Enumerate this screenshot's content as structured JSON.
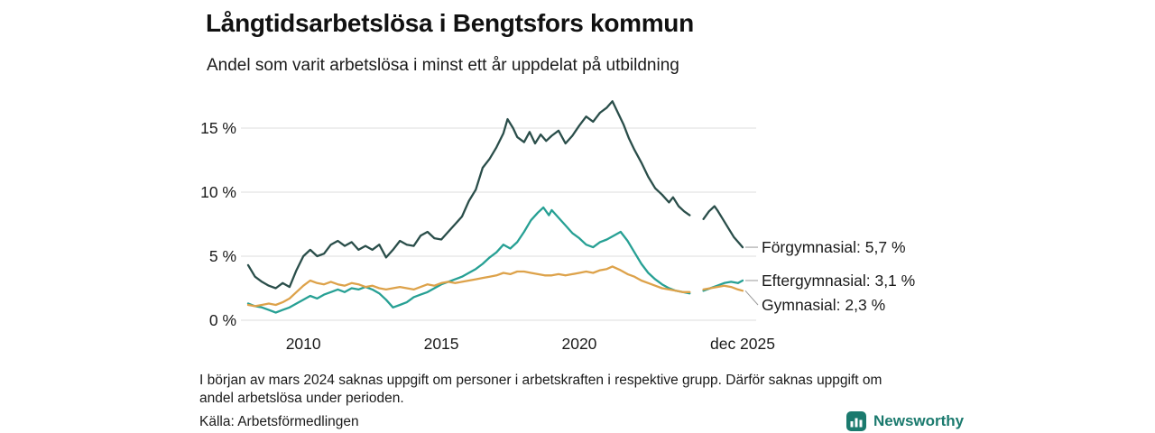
{
  "header": {
    "title": "Långtidsarbetslösa i Bengtsfors kommun",
    "subtitle": "Andel som varit arbetslösa i minst ett år uppdelat på utbildning"
  },
  "footer": {
    "note": "I början av mars 2024 saknas uppgift om personer i arbetskraften i respektive grupp. Därför saknas uppgift om\nandel arbetslösa under perioden.",
    "source": "Källa: Arbetsförmedlingen",
    "logo_text": "Newsworthy",
    "logo_color": "#1b7a6e"
  },
  "chart_data": {
    "type": "line",
    "title": "Långtidsarbetslösa i Bengtsfors kommun",
    "subtitle": "Andel som varit arbetslösa i minst ett år uppdelat på utbildning",
    "xlim": [
      2008,
      2025.92
    ],
    "ylim": [
      0,
      17.5
    ],
    "yticks": [
      0,
      5,
      10,
      15
    ],
    "ytick_labels": [
      "0 %",
      "5 %",
      "10 %",
      "15 %"
    ],
    "xticks": [
      2010,
      2015,
      2020,
      2025.92
    ],
    "xtick_labels": [
      "2010",
      "2015",
      "2020",
      "dec 2025"
    ],
    "grid": "horizontal",
    "gap_note": "data gap around March 2024",
    "series": [
      {
        "name": "Förgymnasial",
        "color": "#2a4e4a",
        "end_value": 5.7,
        "end_label": "Förgymnasial: 5,7 %",
        "points": [
          [
            2008.0,
            4.3
          ],
          [
            2008.25,
            3.4
          ],
          [
            2008.5,
            3.0
          ],
          [
            2008.75,
            2.7
          ],
          [
            2009.0,
            2.5
          ],
          [
            2009.25,
            2.9
          ],
          [
            2009.5,
            2.6
          ],
          [
            2009.75,
            3.9
          ],
          [
            2010.0,
            5.0
          ],
          [
            2010.25,
            5.5
          ],
          [
            2010.5,
            5.0
          ],
          [
            2010.75,
            5.2
          ],
          [
            2011.0,
            5.9
          ],
          [
            2011.25,
            6.2
          ],
          [
            2011.5,
            5.8
          ],
          [
            2011.75,
            6.1
          ],
          [
            2012.0,
            5.5
          ],
          [
            2012.25,
            5.8
          ],
          [
            2012.5,
            5.5
          ],
          [
            2012.75,
            5.9
          ],
          [
            2013.0,
            4.9
          ],
          [
            2013.25,
            5.5
          ],
          [
            2013.5,
            6.2
          ],
          [
            2013.75,
            5.9
          ],
          [
            2014.0,
            5.8
          ],
          [
            2014.25,
            6.6
          ],
          [
            2014.5,
            6.9
          ],
          [
            2014.75,
            6.4
          ],
          [
            2015.0,
            6.3
          ],
          [
            2015.25,
            6.9
          ],
          [
            2015.5,
            7.5
          ],
          [
            2015.75,
            8.1
          ],
          [
            2016.0,
            9.3
          ],
          [
            2016.25,
            10.2
          ],
          [
            2016.5,
            11.9
          ],
          [
            2016.75,
            12.6
          ],
          [
            2017.0,
            13.5
          ],
          [
            2017.25,
            14.6
          ],
          [
            2017.4,
            15.7
          ],
          [
            2017.6,
            15.0
          ],
          [
            2017.75,
            14.3
          ],
          [
            2018.0,
            13.9
          ],
          [
            2018.2,
            14.7
          ],
          [
            2018.4,
            13.8
          ],
          [
            2018.6,
            14.5
          ],
          [
            2018.8,
            14.0
          ],
          [
            2019.0,
            14.4
          ],
          [
            2019.25,
            14.8
          ],
          [
            2019.5,
            13.8
          ],
          [
            2019.75,
            14.4
          ],
          [
            2020.0,
            15.2
          ],
          [
            2020.25,
            15.9
          ],
          [
            2020.5,
            15.5
          ],
          [
            2020.75,
            16.2
          ],
          [
            2021.0,
            16.6
          ],
          [
            2021.2,
            17.1
          ],
          [
            2021.4,
            16.2
          ],
          [
            2021.6,
            15.3
          ],
          [
            2021.8,
            14.2
          ],
          [
            2022.0,
            13.3
          ],
          [
            2022.25,
            12.3
          ],
          [
            2022.5,
            11.2
          ],
          [
            2022.75,
            10.3
          ],
          [
            2023.0,
            9.8
          ],
          [
            2023.25,
            9.2
          ],
          [
            2023.4,
            9.6
          ],
          [
            2023.6,
            8.9
          ],
          [
            2023.8,
            8.5
          ],
          [
            2024.0,
            8.2
          ],
          [
            2024.17,
            null
          ],
          [
            2024.5,
            7.9
          ],
          [
            2024.7,
            8.5
          ],
          [
            2024.9,
            8.9
          ],
          [
            2025.0,
            8.6
          ],
          [
            2025.2,
            7.9
          ],
          [
            2025.4,
            7.2
          ],
          [
            2025.6,
            6.5
          ],
          [
            2025.8,
            6.0
          ],
          [
            2025.92,
            5.7
          ]
        ]
      },
      {
        "name": "Eftergymnasial",
        "color": "#27a094",
        "end_value": 3.1,
        "end_label": "Eftergymnasial: 3,1 %",
        "points": [
          [
            2008.0,
            1.3
          ],
          [
            2008.25,
            1.1
          ],
          [
            2008.5,
            1.0
          ],
          [
            2008.75,
            0.8
          ],
          [
            2009.0,
            0.6
          ],
          [
            2009.25,
            0.8
          ],
          [
            2009.5,
            1.0
          ],
          [
            2009.75,
            1.3
          ],
          [
            2010.0,
            1.6
          ],
          [
            2010.25,
            1.9
          ],
          [
            2010.5,
            1.7
          ],
          [
            2010.75,
            2.0
          ],
          [
            2011.0,
            2.2
          ],
          [
            2011.25,
            2.4
          ],
          [
            2011.5,
            2.2
          ],
          [
            2011.75,
            2.5
          ],
          [
            2012.0,
            2.4
          ],
          [
            2012.25,
            2.6
          ],
          [
            2012.5,
            2.4
          ],
          [
            2012.75,
            2.1
          ],
          [
            2013.0,
            1.6
          ],
          [
            2013.25,
            1.0
          ],
          [
            2013.5,
            1.2
          ],
          [
            2013.75,
            1.4
          ],
          [
            2014.0,
            1.8
          ],
          [
            2014.25,
            2.0
          ],
          [
            2014.5,
            2.2
          ],
          [
            2014.75,
            2.5
          ],
          [
            2015.0,
            2.8
          ],
          [
            2015.25,
            3.0
          ],
          [
            2015.5,
            3.2
          ],
          [
            2015.75,
            3.4
          ],
          [
            2016.0,
            3.7
          ],
          [
            2016.25,
            4.0
          ],
          [
            2016.5,
            4.4
          ],
          [
            2016.75,
            4.9
          ],
          [
            2017.0,
            5.3
          ],
          [
            2017.25,
            5.9
          ],
          [
            2017.5,
            5.6
          ],
          [
            2017.75,
            6.1
          ],
          [
            2018.0,
            6.9
          ],
          [
            2018.25,
            7.8
          ],
          [
            2018.5,
            8.4
          ],
          [
            2018.7,
            8.8
          ],
          [
            2018.9,
            8.2
          ],
          [
            2019.0,
            8.6
          ],
          [
            2019.25,
            8.0
          ],
          [
            2019.5,
            7.4
          ],
          [
            2019.75,
            6.8
          ],
          [
            2020.0,
            6.4
          ],
          [
            2020.25,
            5.9
          ],
          [
            2020.5,
            5.7
          ],
          [
            2020.75,
            6.1
          ],
          [
            2021.0,
            6.3
          ],
          [
            2021.25,
            6.6
          ],
          [
            2021.5,
            6.9
          ],
          [
            2021.75,
            6.2
          ],
          [
            2022.0,
            5.3
          ],
          [
            2022.25,
            4.4
          ],
          [
            2022.5,
            3.7
          ],
          [
            2022.75,
            3.2
          ],
          [
            2023.0,
            2.8
          ],
          [
            2023.25,
            2.5
          ],
          [
            2023.5,
            2.3
          ],
          [
            2023.75,
            2.2
          ],
          [
            2024.0,
            2.1
          ],
          [
            2024.17,
            null
          ],
          [
            2024.5,
            2.3
          ],
          [
            2024.75,
            2.5
          ],
          [
            2025.0,
            2.7
          ],
          [
            2025.25,
            2.9
          ],
          [
            2025.5,
            3.0
          ],
          [
            2025.75,
            2.9
          ],
          [
            2025.92,
            3.1
          ]
        ]
      },
      {
        "name": "Gymnasial",
        "color": "#dda24a",
        "end_value": 2.3,
        "end_label": "Gymnasial: 2,3 %",
        "points": [
          [
            2008.0,
            1.2
          ],
          [
            2008.25,
            1.1
          ],
          [
            2008.5,
            1.2
          ],
          [
            2008.75,
            1.3
          ],
          [
            2009.0,
            1.2
          ],
          [
            2009.25,
            1.4
          ],
          [
            2009.5,
            1.7
          ],
          [
            2009.75,
            2.2
          ],
          [
            2010.0,
            2.7
          ],
          [
            2010.25,
            3.1
          ],
          [
            2010.5,
            2.9
          ],
          [
            2010.75,
            2.8
          ],
          [
            2011.0,
            3.0
          ],
          [
            2011.25,
            2.8
          ],
          [
            2011.5,
            2.7
          ],
          [
            2011.75,
            2.9
          ],
          [
            2012.0,
            2.8
          ],
          [
            2012.25,
            2.6
          ],
          [
            2012.5,
            2.7
          ],
          [
            2012.75,
            2.5
          ],
          [
            2013.0,
            2.4
          ],
          [
            2013.25,
            2.5
          ],
          [
            2013.5,
            2.6
          ],
          [
            2013.75,
            2.5
          ],
          [
            2014.0,
            2.4
          ],
          [
            2014.25,
            2.6
          ],
          [
            2014.5,
            2.8
          ],
          [
            2014.75,
            2.7
          ],
          [
            2015.0,
            2.9
          ],
          [
            2015.25,
            3.0
          ],
          [
            2015.5,
            2.9
          ],
          [
            2015.75,
            3.0
          ],
          [
            2016.0,
            3.1
          ],
          [
            2016.25,
            3.2
          ],
          [
            2016.5,
            3.3
          ],
          [
            2016.75,
            3.4
          ],
          [
            2017.0,
            3.5
          ],
          [
            2017.25,
            3.7
          ],
          [
            2017.5,
            3.6
          ],
          [
            2017.75,
            3.8
          ],
          [
            2018.0,
            3.8
          ],
          [
            2018.25,
            3.7
          ],
          [
            2018.5,
            3.6
          ],
          [
            2018.75,
            3.5
          ],
          [
            2019.0,
            3.5
          ],
          [
            2019.25,
            3.6
          ],
          [
            2019.5,
            3.5
          ],
          [
            2019.75,
            3.6
          ],
          [
            2020.0,
            3.7
          ],
          [
            2020.25,
            3.8
          ],
          [
            2020.5,
            3.7
          ],
          [
            2020.75,
            3.9
          ],
          [
            2021.0,
            4.0
          ],
          [
            2021.2,
            4.2
          ],
          [
            2021.5,
            3.9
          ],
          [
            2021.75,
            3.6
          ],
          [
            2022.0,
            3.4
          ],
          [
            2022.25,
            3.1
          ],
          [
            2022.5,
            2.9
          ],
          [
            2022.75,
            2.7
          ],
          [
            2023.0,
            2.5
          ],
          [
            2023.25,
            2.4
          ],
          [
            2023.5,
            2.3
          ],
          [
            2023.75,
            2.2
          ],
          [
            2024.0,
            2.2
          ],
          [
            2024.17,
            null
          ],
          [
            2024.5,
            2.4
          ],
          [
            2024.75,
            2.5
          ],
          [
            2025.0,
            2.6
          ],
          [
            2025.25,
            2.7
          ],
          [
            2025.5,
            2.6
          ],
          [
            2025.75,
            2.4
          ],
          [
            2025.92,
            2.3
          ]
        ]
      }
    ]
  }
}
